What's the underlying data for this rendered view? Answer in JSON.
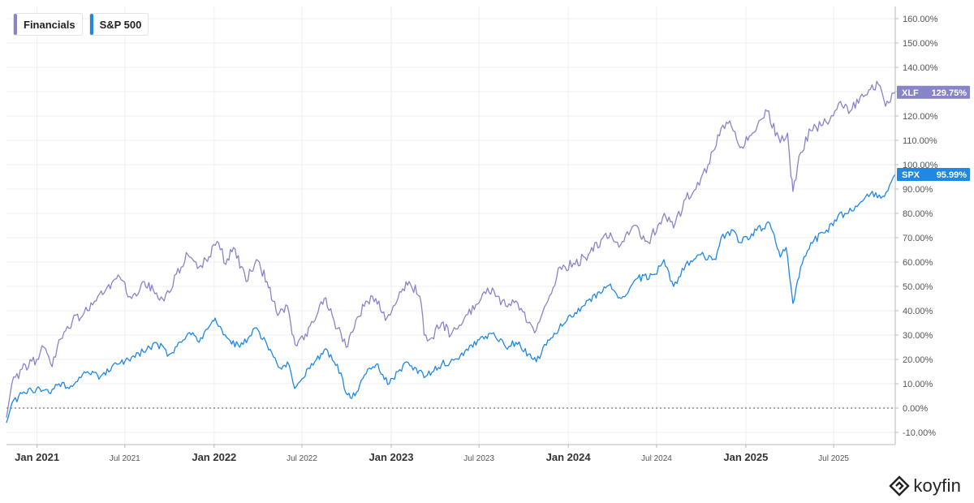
{
  "chart_data": {
    "type": "line",
    "title": "",
    "xlabel": "",
    "ylabel": "",
    "ylim": [
      -15,
      165
    ],
    "y_ticks": [
      -10,
      0,
      10,
      20,
      30,
      40,
      50,
      60,
      70,
      80,
      90,
      100,
      110,
      120,
      130,
      140,
      150,
      160
    ],
    "y_tick_labels": [
      "-10.00%",
      "0.00%",
      "10.00%",
      "20.00%",
      "30.00%",
      "40.00%",
      "50.00%",
      "60.00%",
      "70.00%",
      "80.00%",
      "90.00%",
      "100.00%",
      "110.00%",
      "120.00%",
      "130.00%",
      "140.00%",
      "150.00%",
      "160.00%"
    ],
    "x_range": [
      "2020-10-30",
      "2025-11-05"
    ],
    "x_ticks": [
      {
        "date": "2021-01-01",
        "label": "Jan 2021",
        "major": true
      },
      {
        "date": "2021-07-01",
        "label": "Jul 2021",
        "major": false
      },
      {
        "date": "2022-01-01",
        "label": "Jan 2022",
        "major": true
      },
      {
        "date": "2022-07-01",
        "label": "Jul 2022",
        "major": false
      },
      {
        "date": "2023-01-01",
        "label": "Jan 2023",
        "major": true
      },
      {
        "date": "2023-07-01",
        "label": "Jul 2023",
        "major": false
      },
      {
        "date": "2024-01-01",
        "label": "Jan 2024",
        "major": true
      },
      {
        "date": "2024-07-01",
        "label": "Jul 2024",
        "major": false
      },
      {
        "date": "2025-01-01",
        "label": "Jan 2025",
        "major": true
      },
      {
        "date": "2025-07-01",
        "label": "Jul 2025",
        "major": false
      }
    ],
    "baseline": 0,
    "grid": true,
    "legend_position": "top-left",
    "series": [
      {
        "name": "Financials",
        "ticker": "XLF",
        "color": "#8884c8",
        "last_label": "129.75%",
        "points": [
          [
            "2020-10-30",
            -4
          ],
          [
            "2020-11-10",
            10
          ],
          [
            "2020-12-01",
            16
          ],
          [
            "2020-12-31",
            20
          ],
          [
            "2021-01-15",
            25
          ],
          [
            "2021-02-01",
            17
          ],
          [
            "2021-02-15",
            28
          ],
          [
            "2021-03-15",
            36
          ],
          [
            "2021-04-15",
            40
          ],
          [
            "2021-05-10",
            47
          ],
          [
            "2021-06-01",
            49
          ],
          [
            "2021-06-20",
            54
          ],
          [
            "2021-07-15",
            45
          ],
          [
            "2021-08-10",
            52
          ],
          [
            "2021-09-01",
            47
          ],
          [
            "2021-09-20",
            44
          ],
          [
            "2021-10-15",
            55
          ],
          [
            "2021-11-08",
            63
          ],
          [
            "2021-12-01",
            58
          ],
          [
            "2021-12-15",
            61
          ],
          [
            "2022-01-10",
            68
          ],
          [
            "2022-01-25",
            59
          ],
          [
            "2022-02-10",
            66
          ],
          [
            "2022-03-08",
            52
          ],
          [
            "2022-03-29",
            61
          ],
          [
            "2022-04-20",
            52
          ],
          [
            "2022-05-12",
            38
          ],
          [
            "2022-06-01",
            42
          ],
          [
            "2022-06-17",
            26
          ],
          [
            "2022-07-05",
            28
          ],
          [
            "2022-08-16",
            45
          ],
          [
            "2022-09-05",
            36
          ],
          [
            "2022-09-30",
            25
          ],
          [
            "2022-10-20",
            36
          ],
          [
            "2022-11-10",
            44
          ],
          [
            "2022-11-30",
            45
          ],
          [
            "2022-12-20",
            36
          ],
          [
            "2023-01-15",
            45
          ],
          [
            "2023-02-07",
            52
          ],
          [
            "2023-03-01",
            46
          ],
          [
            "2023-03-10",
            30
          ],
          [
            "2023-03-20",
            28
          ],
          [
            "2023-04-15",
            35
          ],
          [
            "2023-05-04",
            30
          ],
          [
            "2023-06-01",
            37
          ],
          [
            "2023-07-15",
            47
          ],
          [
            "2023-08-01",
            48
          ],
          [
            "2023-08-25",
            42
          ],
          [
            "2023-09-15",
            44
          ],
          [
            "2023-10-10",
            35
          ],
          [
            "2023-10-27",
            32
          ],
          [
            "2023-11-20",
            44
          ],
          [
            "2023-12-15",
            58
          ],
          [
            "2024-01-15",
            59
          ],
          [
            "2024-02-15",
            64
          ],
          [
            "2024-03-28",
            72
          ],
          [
            "2024-04-18",
            67
          ],
          [
            "2024-05-15",
            75
          ],
          [
            "2024-06-14",
            68
          ],
          [
            "2024-07-17",
            80
          ],
          [
            "2024-08-05",
            74
          ],
          [
            "2024-08-30",
            86
          ],
          [
            "2024-09-20",
            90
          ],
          [
            "2024-10-15",
            100
          ],
          [
            "2024-11-11",
            115
          ],
          [
            "2024-11-29",
            118
          ],
          [
            "2024-12-20",
            107
          ],
          [
            "2025-01-15",
            113
          ],
          [
            "2025-02-14",
            122
          ],
          [
            "2025-03-13",
            109
          ],
          [
            "2025-03-28",
            113
          ],
          [
            "2025-04-04",
            95
          ],
          [
            "2025-04-08",
            89
          ],
          [
            "2025-04-24",
            105
          ],
          [
            "2025-05-15",
            114
          ],
          [
            "2025-06-05",
            116
          ],
          [
            "2025-06-30",
            120
          ],
          [
            "2025-07-15",
            126
          ],
          [
            "2025-08-01",
            121
          ],
          [
            "2025-08-28",
            129
          ],
          [
            "2025-09-15",
            131
          ],
          [
            "2025-10-01",
            133
          ],
          [
            "2025-10-16",
            124
          ],
          [
            "2025-11-05",
            129.75
          ]
        ]
      },
      {
        "name": "S&P 500",
        "ticker": "SPX",
        "color": "#1e88e5",
        "last_label": "95.99%",
        "points": [
          [
            "2020-10-30",
            -6
          ],
          [
            "2020-11-10",
            2
          ],
          [
            "2020-12-01",
            6
          ],
          [
            "2020-12-31",
            8
          ],
          [
            "2021-01-29",
            6
          ],
          [
            "2021-02-15",
            10
          ],
          [
            "2021-03-08",
            8
          ],
          [
            "2021-04-15",
            15
          ],
          [
            "2021-05-12",
            13
          ],
          [
            "2021-06-15",
            18
          ],
          [
            "2021-07-15",
            21
          ],
          [
            "2021-08-15",
            24
          ],
          [
            "2021-09-03",
            27
          ],
          [
            "2021-09-30",
            22
          ],
          [
            "2021-10-29",
            28
          ],
          [
            "2021-11-18",
            31
          ],
          [
            "2021-12-01",
            27
          ],
          [
            "2021-12-29",
            36
          ],
          [
            "2022-01-03",
            37
          ],
          [
            "2022-01-27",
            29
          ],
          [
            "2022-02-23",
            25
          ],
          [
            "2022-03-29",
            33
          ],
          [
            "2022-04-20",
            26
          ],
          [
            "2022-05-20",
            16
          ],
          [
            "2022-06-01",
            19
          ],
          [
            "2022-06-16",
            8
          ],
          [
            "2022-07-01",
            12
          ],
          [
            "2022-08-16",
            24
          ],
          [
            "2022-09-12",
            18
          ],
          [
            "2022-09-30",
            6
          ],
          [
            "2022-10-12",
            4
          ],
          [
            "2022-11-10",
            14
          ],
          [
            "2022-12-01",
            18
          ],
          [
            "2022-12-28",
            10
          ],
          [
            "2023-01-15",
            15
          ],
          [
            "2023-02-02",
            19
          ],
          [
            "2023-03-13",
            13
          ],
          [
            "2023-04-15",
            18
          ],
          [
            "2023-05-20",
            20
          ],
          [
            "2023-06-15",
            26
          ],
          [
            "2023-07-31",
            31
          ],
          [
            "2023-08-25",
            25
          ],
          [
            "2023-09-15",
            27
          ],
          [
            "2023-10-27",
            19
          ],
          [
            "2023-11-20",
            28
          ],
          [
            "2023-12-29",
            36
          ],
          [
            "2024-02-01",
            42
          ],
          [
            "2024-03-28",
            51
          ],
          [
            "2024-04-19",
            45
          ],
          [
            "2024-05-20",
            53
          ],
          [
            "2024-06-28",
            55
          ],
          [
            "2024-07-16",
            61
          ],
          [
            "2024-08-05",
            50
          ],
          [
            "2024-08-30",
            59
          ],
          [
            "2024-09-30",
            63
          ],
          [
            "2024-10-31",
            61
          ],
          [
            "2024-11-11",
            70
          ],
          [
            "2024-12-06",
            73
          ],
          [
            "2024-12-20",
            68
          ],
          [
            "2025-01-23",
            73
          ],
          [
            "2025-02-19",
            76
          ],
          [
            "2025-03-13",
            62
          ],
          [
            "2025-03-25",
            66
          ],
          [
            "2025-04-04",
            50
          ],
          [
            "2025-04-08",
            43
          ],
          [
            "2025-04-24",
            58
          ],
          [
            "2025-05-15",
            68
          ],
          [
            "2025-06-13",
            72
          ],
          [
            "2025-07-10",
            79
          ],
          [
            "2025-07-31",
            80
          ],
          [
            "2025-08-15",
            83
          ],
          [
            "2025-09-15",
            88
          ],
          [
            "2025-10-10",
            87
          ],
          [
            "2025-10-28",
            93
          ],
          [
            "2025-11-05",
            95.99
          ]
        ]
      }
    ]
  },
  "legend": {
    "items": [
      {
        "label": "Financials",
        "color": "#8884c8"
      },
      {
        "label": "S&P 500",
        "color": "#1e88e5"
      }
    ]
  },
  "brand": {
    "name": "koyfin"
  }
}
